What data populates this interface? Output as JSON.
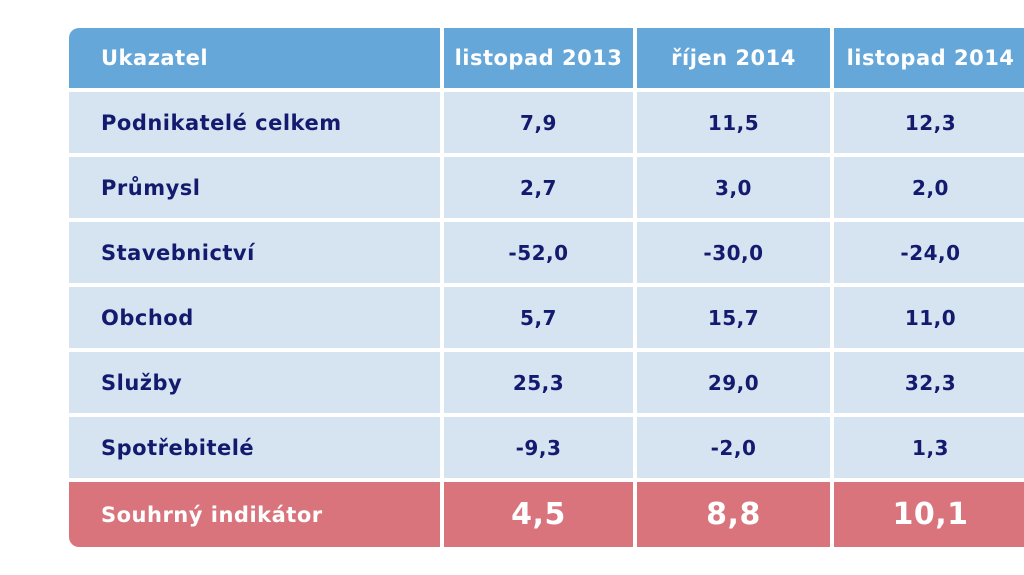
{
  "colors": {
    "header_bg": "#66a7d9",
    "row_bg": "#d6e4f2",
    "row_text": "#141a6e",
    "summary_bg": "#d9747d",
    "header_text": "#ffffff",
    "page_bg": "#ffffff"
  },
  "table": {
    "columns": [
      "Ukazatel",
      "listopad 2013",
      "říjen 2014",
      "listopad 2014"
    ],
    "rows": [
      {
        "label": "Podnikatelé celkem",
        "values": [
          "7,9",
          "11,5",
          "12,3"
        ]
      },
      {
        "label": "Průmysl",
        "values": [
          "2,7",
          "3,0",
          "2,0"
        ]
      },
      {
        "label": "Stavebnictví",
        "values": [
          "-52,0",
          "-30,0",
          "-24,0"
        ]
      },
      {
        "label": "Obchod",
        "values": [
          "5,7",
          "15,7",
          "11,0"
        ]
      },
      {
        "label": "Služby",
        "values": [
          "25,3",
          "29,0",
          "32,3"
        ]
      },
      {
        "label": "Spotřebitelé",
        "values": [
          "-9,3",
          "-2,0",
          "1,3"
        ]
      }
    ],
    "summary": {
      "label": "Souhrný indikátor",
      "values": [
        "4,5",
        "8,8",
        "10,1"
      ]
    }
  },
  "chart_data": {
    "type": "table",
    "title": "",
    "columns": [
      "Ukazatel",
      "listopad 2013",
      "říjen 2014",
      "listopad 2014"
    ],
    "rows": [
      [
        "Podnikatelé celkem",
        7.9,
        11.5,
        12.3
      ],
      [
        "Průmysl",
        2.7,
        3.0,
        2.0
      ],
      [
        "Stavebnictví",
        -52.0,
        -30.0,
        -24.0
      ],
      [
        "Obchod",
        5.7,
        15.7,
        11.0
      ],
      [
        "Služby",
        25.3,
        29.0,
        32.3
      ],
      [
        "Spotřebitelé",
        -9.3,
        -2.0,
        1.3
      ],
      [
        "Souhrný indikátor",
        4.5,
        8.8,
        10.1
      ]
    ],
    "layout_hints": {
      "decimal_separator": ",",
      "summary_row_highlighted": true,
      "right_edge_clipped": true
    }
  }
}
